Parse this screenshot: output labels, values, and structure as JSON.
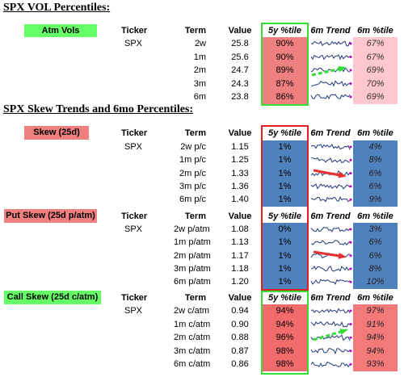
{
  "titles": [
    "SPX VOL Percentiles:",
    "SPX Skew Trends and 6mo Percentiles:"
  ],
  "sections": [
    {
      "label": "Atm Vols",
      "headers": [
        "Ticker",
        "Term",
        "Value",
        "5y %tile",
        "6m Trend",
        "6m %tile"
      ],
      "rows": [
        [
          "SPX",
          "2w",
          "25.8",
          "90%",
          "67%"
        ],
        [
          "1m",
          "25.6",
          "90%",
          "67%"
        ],
        [
          "2m",
          "24.7",
          "89%",
          "69%"
        ],
        [
          "3m",
          "24.3",
          "87%",
          "70%"
        ],
        [
          "6m",
          "23.8",
          "86%",
          "69%"
        ]
      ]
    },
    {
      "label": "Skew (25d)",
      "headers": [
        "Ticker",
        "Term",
        "Value",
        "5y %tile",
        "6m Trend",
        "6m %tile"
      ],
      "rows": [
        [
          "SPX",
          "2w p/c",
          "1.15",
          "1%",
          "4%"
        ],
        [
          "1m p/c",
          "1.25",
          "1%",
          "8%"
        ],
        [
          "2m p/c",
          "1.33",
          "1%",
          "6%"
        ],
        [
          "3m p/c",
          "1.36",
          "1%",
          "6%"
        ],
        [
          "6m p/c",
          "1.40",
          "1%",
          "9%"
        ]
      ]
    },
    {
      "label": "Put Skew (25d p/atm)",
      "headers": [
        "Ticker",
        "Term",
        "Value",
        "5y %tile",
        "6m Trend",
        "6m %tile"
      ],
      "rows": [
        [
          "SPX",
          "2w p/atm",
          "1.08",
          "0%",
          "3%"
        ],
        [
          "1m p/atm",
          "1.13",
          "1%",
          "6%"
        ],
        [
          "2m p/atm",
          "1.17",
          "1%",
          "6%"
        ],
        [
          "3m p/atm",
          "1.18",
          "1%",
          "8%"
        ],
        [
          "6m p/atm",
          "1.20",
          "1%",
          "10%"
        ]
      ]
    },
    {
      "label": "Call Skew (25d c/atm)",
      "headers": [
        "Ticker",
        "Term",
        "Value",
        "5y %tile",
        "6m Trend",
        "6m %tile"
      ],
      "rows": [
        [
          "SPX",
          "2w c/atm",
          "0.94",
          "94%",
          "97%"
        ],
        [
          "1m c/atm",
          "0.90",
          "94%",
          "91%"
        ],
        [
          "2m c/atm",
          "0.88",
          "96%",
          "94%"
        ],
        [
          "3m c/atm",
          "0.87",
          "98%",
          "94%"
        ],
        [
          "6m c/atm",
          "0.86",
          "98%",
          "93%"
        ]
      ]
    }
  ]
}
